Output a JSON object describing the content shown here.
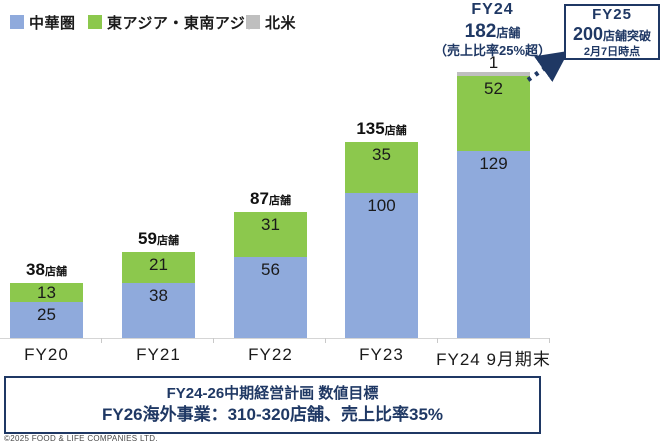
{
  "colors": {
    "china_blue": "#8FAADC",
    "asia_green": "#8CC84D",
    "north_america_gray": "#BFBFBF",
    "navy": "#1F3864",
    "axis_gray": "#D5D5D5"
  },
  "legend": {
    "items": [
      {
        "label": "中華圏",
        "color": "#8FAADC"
      },
      {
        "label": "東アジア・東南アジア",
        "color": "#8CC84D"
      },
      {
        "label": "北米",
        "color": "#BFBFBF"
      }
    ]
  },
  "chart_data": {
    "type": "bar",
    "stacked": true,
    "title": "",
    "xlabel": "",
    "ylabel": "",
    "categories": [
      "FY20",
      "FY21",
      "FY22",
      "FY23",
      "FY24 9月期末"
    ],
    "series": [
      {
        "name": "中華圏",
        "color": "#8FAADC",
        "values": [
          25,
          38,
          56,
          100,
          129
        ]
      },
      {
        "name": "東アジア・東南アジア",
        "color": "#8CC84D",
        "values": [
          13,
          21,
          31,
          35,
          52
        ]
      },
      {
        "name": "北米",
        "color": "#BFBFBF",
        "values": [
          null,
          null,
          null,
          null,
          1
        ]
      }
    ],
    "totals": [
      38,
      59,
      87,
      135,
      182
    ],
    "total_label_suffix": "店舗",
    "show_total_labels": [
      true,
      true,
      true,
      true,
      false
    ],
    "ylim": [
      0,
      190
    ],
    "grid": false,
    "legend_position": "top-left"
  },
  "annotations": {
    "fy24_note": {
      "line1": "FY24",
      "line2_number": "182",
      "line2_suffix": "店舗",
      "line3": "（売上比率25%超）"
    },
    "fy25_box": {
      "line1": "FY25",
      "line2_number": "200",
      "line2_suffix": "店舗突破",
      "line3": "2月7日時点"
    }
  },
  "target_box": {
    "line1": "FY24-26中期経営計画 数値目標",
    "line2": "FY26海外事業：310-320店舗、売上比率35%"
  },
  "copyright": "©2025 FOOD & LIFE COMPANIES LTD."
}
